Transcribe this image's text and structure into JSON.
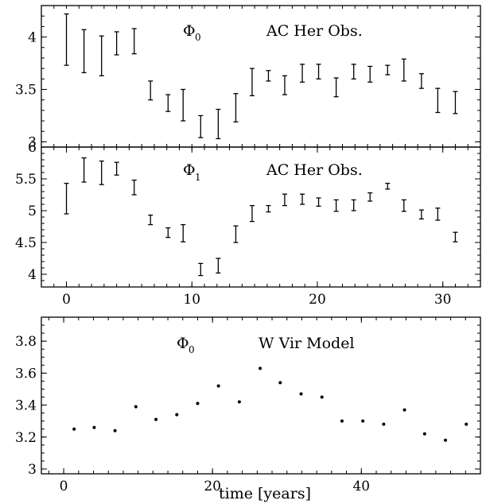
{
  "chart_data": [
    {
      "type": "errorbar",
      "phi_label": "Φ",
      "phi_subscript": "0",
      "annotation": "AC Her Obs.",
      "xlim": [
        -2,
        33
      ],
      "ylim": [
        2.95,
        4.3
      ],
      "x_ticks": [],
      "y_ticks": [
        {
          "v": 3,
          "label": "3"
        },
        {
          "v": 3.5,
          "label": "3.5"
        },
        {
          "v": 4,
          "label": "4"
        }
      ],
      "x_minor": 1,
      "y_minor": 0.1,
      "points": [
        {
          "x": 0.0,
          "low": 3.73,
          "high": 4.22
        },
        {
          "x": 1.4,
          "low": 3.66,
          "high": 4.07
        },
        {
          "x": 2.8,
          "low": 3.63,
          "high": 4.01
        },
        {
          "x": 4.0,
          "low": 3.83,
          "high": 4.05
        },
        {
          "x": 5.4,
          "low": 3.84,
          "high": 4.08
        },
        {
          "x": 6.7,
          "low": 3.4,
          "high": 3.58
        },
        {
          "x": 8.1,
          "low": 3.29,
          "high": 3.45
        },
        {
          "x": 9.3,
          "low": 3.2,
          "high": 3.5
        },
        {
          "x": 10.7,
          "low": 3.04,
          "high": 3.25
        },
        {
          "x": 12.1,
          "low": 3.03,
          "high": 3.31
        },
        {
          "x": 13.5,
          "low": 3.19,
          "high": 3.46
        },
        {
          "x": 14.8,
          "low": 3.44,
          "high": 3.7
        },
        {
          "x": 16.1,
          "low": 3.58,
          "high": 3.68
        },
        {
          "x": 17.4,
          "low": 3.45,
          "high": 3.63
        },
        {
          "x": 18.8,
          "low": 3.57,
          "high": 3.74
        },
        {
          "x": 20.1,
          "low": 3.6,
          "high": 3.74
        },
        {
          "x": 21.5,
          "low": 3.43,
          "high": 3.61
        },
        {
          "x": 22.9,
          "low": 3.6,
          "high": 3.74
        },
        {
          "x": 24.2,
          "low": 3.57,
          "high": 3.72
        },
        {
          "x": 25.6,
          "low": 3.64,
          "high": 3.73
        },
        {
          "x": 26.9,
          "low": 3.58,
          "high": 3.79
        },
        {
          "x": 28.3,
          "low": 3.51,
          "high": 3.65
        },
        {
          "x": 29.6,
          "low": 3.28,
          "high": 3.51
        },
        {
          "x": 31.0,
          "low": 3.27,
          "high": 3.48
        }
      ]
    },
    {
      "type": "errorbar",
      "phi_label": "Φ",
      "phi_subscript": "1",
      "annotation": "AC Her Obs.",
      "xlim": [
        -2,
        33
      ],
      "ylim": [
        3.8,
        6.0
      ],
      "x_ticks": [
        {
          "v": 0,
          "label": "0"
        },
        {
          "v": 10,
          "label": "10"
        },
        {
          "v": 20,
          "label": "20"
        },
        {
          "v": 30,
          "label": "30"
        }
      ],
      "y_ticks": [
        {
          "v": 4,
          "label": "4"
        },
        {
          "v": 4.5,
          "label": "4.5"
        },
        {
          "v": 5,
          "label": "5"
        },
        {
          "v": 5.5,
          "label": "5.5"
        },
        {
          "v": 6,
          "label": "6"
        }
      ],
      "x_minor": 1,
      "y_minor": 0.1,
      "points": [
        {
          "x": 0.0,
          "low": 4.95,
          "high": 5.43
        },
        {
          "x": 1.4,
          "low": 5.45,
          "high": 5.83
        },
        {
          "x": 2.8,
          "low": 5.41,
          "high": 5.78
        },
        {
          "x": 4.0,
          "low": 5.56,
          "high": 5.76
        },
        {
          "x": 5.4,
          "low": 5.25,
          "high": 5.48
        },
        {
          "x": 6.7,
          "low": 4.78,
          "high": 4.93
        },
        {
          "x": 8.1,
          "low": 4.58,
          "high": 4.73
        },
        {
          "x": 9.3,
          "low": 4.51,
          "high": 4.78
        },
        {
          "x": 10.7,
          "low": 3.98,
          "high": 4.17
        },
        {
          "x": 12.1,
          "low": 4.02,
          "high": 4.25
        },
        {
          "x": 13.5,
          "low": 4.5,
          "high": 4.76
        },
        {
          "x": 14.8,
          "low": 4.83,
          "high": 5.08
        },
        {
          "x": 16.1,
          "low": 4.98,
          "high": 5.08
        },
        {
          "x": 17.4,
          "low": 5.08,
          "high": 5.26
        },
        {
          "x": 18.8,
          "low": 5.1,
          "high": 5.26
        },
        {
          "x": 20.1,
          "low": 5.07,
          "high": 5.2
        },
        {
          "x": 21.5,
          "low": 4.99,
          "high": 5.17
        },
        {
          "x": 22.9,
          "low": 5.0,
          "high": 5.17
        },
        {
          "x": 24.2,
          "low": 5.15,
          "high": 5.28
        },
        {
          "x": 25.6,
          "low": 5.34,
          "high": 5.43
        },
        {
          "x": 26.9,
          "low": 4.99,
          "high": 5.17
        },
        {
          "x": 28.3,
          "low": 4.87,
          "high": 5.01
        },
        {
          "x": 29.6,
          "low": 4.85,
          "high": 5.04
        },
        {
          "x": 31.0,
          "low": 4.51,
          "high": 4.66
        }
      ]
    },
    {
      "type": "scatter",
      "phi_label": "Φ",
      "phi_subscript": "0",
      "annotation": "W Vir Model",
      "xlabel": "time [years]",
      "xlim": [
        -3,
        56
      ],
      "ylim": [
        2.97,
        3.95
      ],
      "x_ticks": [
        {
          "v": 0,
          "label": "0"
        },
        {
          "v": 20,
          "label": "20"
        },
        {
          "v": 40,
          "label": "40"
        }
      ],
      "y_ticks": [
        {
          "v": 3,
          "label": "3"
        },
        {
          "v": 3.2,
          "label": "3.2"
        },
        {
          "v": 3.4,
          "label": "3.4"
        },
        {
          "v": 3.6,
          "label": "3.6"
        },
        {
          "v": 3.8,
          "label": "3.8"
        }
      ],
      "x_minor": 2,
      "y_minor": 0.05,
      "points": [
        {
          "x": 1.4,
          "y": 3.25
        },
        {
          "x": 4.1,
          "y": 3.26
        },
        {
          "x": 6.9,
          "y": 3.24
        },
        {
          "x": 9.7,
          "y": 3.39
        },
        {
          "x": 12.4,
          "y": 3.31
        },
        {
          "x": 15.2,
          "y": 3.34
        },
        {
          "x": 18.0,
          "y": 3.41
        },
        {
          "x": 20.8,
          "y": 3.52
        },
        {
          "x": 23.6,
          "y": 3.42
        },
        {
          "x": 26.4,
          "y": 3.63
        },
        {
          "x": 29.1,
          "y": 3.54
        },
        {
          "x": 31.9,
          "y": 3.47
        },
        {
          "x": 34.7,
          "y": 3.45
        },
        {
          "x": 37.4,
          "y": 3.3
        },
        {
          "x": 40.2,
          "y": 3.3
        },
        {
          "x": 43.0,
          "y": 3.28
        },
        {
          "x": 45.8,
          "y": 3.37
        },
        {
          "x": 48.5,
          "y": 3.22
        },
        {
          "x": 51.3,
          "y": 3.18
        },
        {
          "x": 54.1,
          "y": 3.28
        }
      ]
    }
  ]
}
